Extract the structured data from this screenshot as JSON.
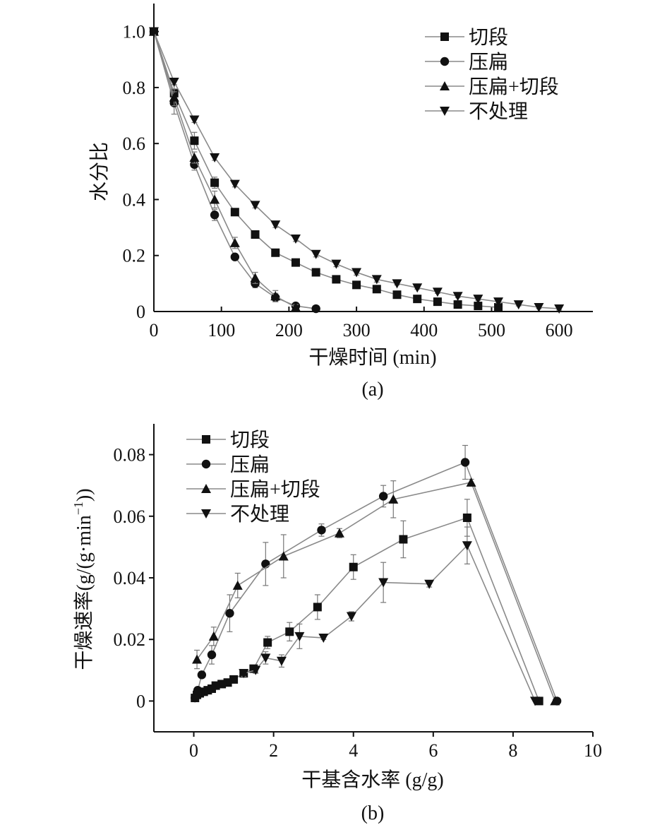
{
  "chart_data": [
    {
      "type": "line",
      "caption": "(a)",
      "xlabel": "干燥时间 (min)",
      "ylabel": "水分比",
      "xlim": [
        0,
        650
      ],
      "ylim": [
        0,
        1.1
      ],
      "x_ticks": [
        0,
        100,
        200,
        300,
        400,
        500,
        600
      ],
      "y_ticks": [
        0,
        0.2,
        0.4,
        0.6,
        0.8,
        1.0
      ],
      "x_tick_labels": [
        "0",
        "100",
        "200",
        "300",
        "400",
        "500",
        "600"
      ],
      "y_tick_labels": [
        "0",
        "0.2",
        "0.4",
        "0.6",
        "0.8",
        "1.0"
      ],
      "legend_position": "top-right",
      "grid": false,
      "series": [
        {
          "name": "切段",
          "marker": "square",
          "x": [
            0,
            30,
            60,
            90,
            120,
            150,
            180,
            210,
            240,
            270,
            300,
            330,
            360,
            390,
            420,
            450,
            480,
            510
          ],
          "y": [
            1.0,
            0.78,
            0.61,
            0.46,
            0.355,
            0.275,
            0.21,
            0.175,
            0.14,
            0.115,
            0.095,
            0.08,
            0.06,
            0.045,
            0.035,
            0.025,
            0.02,
            0.015
          ],
          "err": [
            0,
            0.03,
            0.03,
            0.02,
            0.01,
            0.01,
            0.01,
            0.01,
            0.01,
            0.01,
            0.01,
            0.01,
            0.005,
            0.005,
            0.005,
            0.005,
            0.005,
            0.005
          ]
        },
        {
          "name": "压扁",
          "marker": "circle",
          "x": [
            0,
            30,
            60,
            90,
            120,
            150,
            180,
            210,
            240
          ],
          "y": [
            1.0,
            0.745,
            0.525,
            0.345,
            0.195,
            0.1,
            0.05,
            0.02,
            0.01
          ],
          "err": [
            0,
            0.04,
            0.02,
            0.02,
            0.01,
            0.015,
            0.015,
            0.01,
            0.005
          ]
        },
        {
          "name": "压扁+切段",
          "marker": "triangle-up",
          "x": [
            0,
            30,
            60,
            90,
            120,
            150,
            180,
            210
          ],
          "y": [
            1.0,
            0.765,
            0.55,
            0.4,
            0.245,
            0.12,
            0.055,
            0.015
          ],
          "err": [
            0,
            0.03,
            0.02,
            0.03,
            0.02,
            0.02,
            0.02,
            0.01
          ]
        },
        {
          "name": "不处理",
          "marker": "triangle-down",
          "x": [
            0,
            30,
            60,
            90,
            120,
            150,
            180,
            210,
            240,
            270,
            300,
            330,
            360,
            390,
            420,
            450,
            480,
            510,
            540,
            570,
            600
          ],
          "y": [
            1.0,
            0.82,
            0.685,
            0.55,
            0.455,
            0.38,
            0.31,
            0.26,
            0.205,
            0.17,
            0.14,
            0.115,
            0.1,
            0.085,
            0.07,
            0.055,
            0.045,
            0.035,
            0.025,
            0.015,
            0.01
          ],
          "err": [
            0,
            0.01,
            0.01,
            0.01,
            0.01,
            0.01,
            0.01,
            0.01,
            0.01,
            0.01,
            0.01,
            0.01,
            0.005,
            0.005,
            0.005,
            0.005,
            0.005,
            0.005,
            0.005,
            0.005,
            0.005
          ]
        }
      ]
    },
    {
      "type": "line",
      "caption": "(b)",
      "xlabel": "干基含水率 (g/g)",
      "ylabel": "干燥速率(g/(g·min",
      "ylabel_sup": "−1",
      "ylabel_end": "))",
      "xlim": [
        -1,
        10
      ],
      "ylim": [
        -0.01,
        0.09
      ],
      "x_ticks": [
        0,
        2,
        4,
        6,
        8,
        10
      ],
      "y_ticks": [
        0,
        0.02,
        0.04,
        0.06,
        0.08
      ],
      "x_tick_labels": [
        "0",
        "2",
        "4",
        "6",
        "8",
        "10"
      ],
      "y_tick_labels": [
        "0",
        "0.02",
        "0.04",
        "0.06",
        "0.08"
      ],
      "legend_position": "top-left",
      "grid": false,
      "series": [
        {
          "name": "切段",
          "marker": "square",
          "x": [
            8.65,
            6.85,
            5.25,
            4.0,
            3.1,
            2.4,
            1.85,
            1.5,
            1.25,
            1.0,
            0.85,
            0.7,
            0.55,
            0.45,
            0.35,
            0.25,
            0.15,
            0.08,
            0.03
          ],
          "y": [
            0,
            0.0595,
            0.0525,
            0.0435,
            0.0305,
            0.0225,
            0.019,
            0.0105,
            0.009,
            0.007,
            0.006,
            0.0055,
            0.005,
            0.004,
            0.0035,
            0.003,
            0.0025,
            0.002,
            0.001
          ],
          "err": [
            0,
            0.006,
            0.006,
            0.004,
            0.004,
            0.003,
            0.002,
            0.001,
            0.001,
            0.001,
            0.001,
            0.001,
            0.001,
            0.001,
            0.001,
            0.001,
            0.001,
            0.001,
            0.001
          ]
        },
        {
          "name": "压扁",
          "marker": "circle",
          "x": [
            9.1,
            6.8,
            4.75,
            3.2,
            1.8,
            0.9,
            0.45,
            0.2,
            0.1,
            0.03
          ],
          "y": [
            0,
            0.0775,
            0.0665,
            0.0555,
            0.0445,
            0.0285,
            0.015,
            0.0085,
            0.0035,
            0.001
          ],
          "err": [
            0,
            0.0055,
            0.0035,
            0.002,
            0.007,
            0.006,
            0.003,
            0.001,
            0.001,
            0.001
          ]
        },
        {
          "name": "压扁+切段",
          "marker": "triangle-up",
          "x": [
            9.05,
            6.95,
            5.0,
            3.65,
            2.25,
            1.1,
            0.5,
            0.08
          ],
          "y": [
            0,
            0.071,
            0.0655,
            0.0545,
            0.047,
            0.0375,
            0.021,
            0.0135
          ],
          "err": [
            0,
            0.001,
            0.006,
            0.0015,
            0.007,
            0.004,
            0.003,
            0.003
          ]
        },
        {
          "name": "不处理",
          "marker": "triangle-down",
          "x": [
            8.55,
            6.85,
            5.9,
            4.75,
            3.95,
            3.25,
            2.65,
            2.2,
            1.8,
            1.55,
            1.25
          ],
          "y": [
            0,
            0.0505,
            0.038,
            0.0385,
            0.0275,
            0.0205,
            0.021,
            0.013,
            0.014,
            0.01,
            0.009
          ],
          "err": [
            0,
            0.006,
            0.001,
            0.0065,
            0.0015,
            0.0005,
            0.004,
            0.002,
            0.002,
            0.001,
            0.001
          ]
        }
      ]
    }
  ]
}
